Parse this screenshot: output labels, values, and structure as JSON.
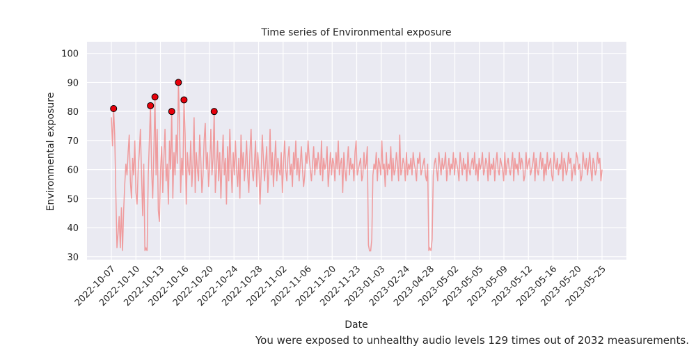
{
  "chart_data": {
    "type": "line",
    "title": "Time series of Environmental exposure",
    "xlabel": "Date",
    "ylabel": "Environmental exposure",
    "ylim": [
      29,
      104
    ],
    "yticks": [
      30,
      40,
      50,
      60,
      70,
      80,
      90,
      100
    ],
    "xticks": [
      "2022-10-07",
      "2022-10-10",
      "2022-10-13",
      "2022-10-16",
      "2022-10-20",
      "2022-10-24",
      "2022-10-28",
      "2022-11-02",
      "2022-11-06",
      "2022-11-20",
      "2022-11-23",
      "2023-01-03",
      "2023-02-24",
      "2023-04-28",
      "2023-05-02",
      "2023-05-05",
      "2023-05-09",
      "2023-05-12",
      "2023-05-16",
      "2023-05-20",
      "2023-05-25"
    ],
    "grid": true,
    "series": [
      {
        "values": [
          78,
          68,
          81,
          72,
          52,
          33,
          38,
          44,
          33,
          47,
          32,
          46,
          55,
          62,
          58,
          66,
          72,
          56,
          50,
          64,
          58,
          70,
          52,
          48,
          60,
          66,
          74,
          58,
          44,
          62,
          32,
          33,
          32,
          58,
          70,
          82,
          60,
          50,
          66,
          85,
          58,
          74,
          46,
          42,
          60,
          68,
          52,
          64,
          74,
          56,
          62,
          48,
          70,
          60,
          80,
          50,
          66,
          58,
          72,
          62,
          90,
          76,
          52,
          64,
          58,
          84,
          72,
          48,
          66,
          60,
          58,
          70,
          54,
          62,
          78,
          52,
          66,
          60,
          56,
          72,
          64,
          52,
          58,
          70,
          76,
          60,
          66,
          54,
          62,
          74,
          58,
          64,
          80,
          52,
          60,
          70,
          56,
          66,
          50,
          62,
          72,
          58,
          64,
          48,
          68,
          56,
          74,
          62,
          52,
          66,
          58,
          70,
          60,
          54,
          64,
          50,
          72,
          60,
          66,
          56,
          62,
          70,
          58,
          52,
          66,
          74,
          60,
          56,
          62,
          70,
          54,
          66,
          60,
          48,
          58,
          72,
          64,
          56,
          62,
          68,
          52,
          60,
          74,
          58,
          66,
          54,
          62,
          70,
          56,
          64,
          60,
          58,
          66,
          52,
          62,
          70,
          60,
          56,
          64,
          68,
          58,
          62,
          54,
          66,
          60,
          70,
          58,
          64,
          56,
          62,
          68,
          60,
          54,
          58,
          66,
          62,
          70,
          64,
          60,
          56,
          62,
          68,
          58,
          64,
          60,
          66,
          62,
          58,
          70,
          56,
          64,
          60,
          62,
          68,
          54,
          60,
          66,
          58,
          64,
          62,
          56,
          66,
          60,
          70,
          58,
          62,
          64,
          52,
          66,
          60,
          56,
          62,
          68,
          58,
          64,
          60,
          62,
          56,
          66,
          70,
          58,
          60,
          62,
          64,
          56,
          58,
          66,
          60,
          62,
          68,
          34,
          32,
          32,
          36,
          58,
          62,
          60,
          66,
          56,
          64,
          62,
          58,
          70,
          60,
          62,
          54,
          66,
          58,
          62,
          60,
          68,
          56,
          64,
          58,
          60,
          66,
          62,
          56,
          72,
          58,
          60,
          64,
          62,
          56,
          66,
          58,
          62,
          60,
          64,
          58,
          66,
          62,
          60,
          56,
          64,
          62,
          66,
          58,
          60,
          62,
          64,
          58,
          56,
          62,
          32,
          33,
          32,
          36,
          58,
          62,
          64,
          60,
          56,
          66,
          62,
          58,
          64,
          60,
          62,
          66,
          56,
          60,
          64,
          58,
          62,
          60,
          66,
          58,
          64,
          62,
          60,
          56,
          66,
          62,
          58,
          64,
          60,
          62,
          56,
          66,
          60,
          58,
          62,
          64,
          60,
          66,
          58,
          62,
          56,
          64,
          60,
          62,
          66,
          58,
          60,
          64,
          62,
          56,
          66,
          58,
          62,
          60,
          64,
          56,
          62,
          66,
          60,
          58,
          64,
          62,
          60,
          56,
          66,
          58,
          62,
          64,
          60,
          58,
          62,
          66,
          56,
          64,
          60,
          62,
          58,
          66,
          60,
          64,
          62,
          56,
          58,
          66,
          60,
          62,
          64,
          58,
          60,
          62,
          66,
          56,
          64,
          60,
          58,
          62,
          66,
          60,
          64,
          56,
          62,
          58,
          66,
          60,
          62,
          64,
          58,
          56,
          66,
          62,
          60,
          64,
          58,
          62,
          60,
          66,
          56,
          64,
          62,
          58,
          60,
          66,
          62,
          64,
          56,
          60,
          62,
          58,
          66,
          64,
          60,
          62,
          56,
          58,
          66,
          62,
          60,
          64,
          58,
          62,
          66,
          60,
          56,
          64,
          62,
          58,
          60,
          66,
          62,
          64,
          56,
          60
        ]
      }
    ],
    "highlight_color": "#e8000b",
    "line_color": "#f08080",
    "marker_edge_color": "#000000",
    "highlight_threshold": 80
  },
  "caption": "You were exposed to unhealthy audio levels 129 times out of 2032 measurements."
}
